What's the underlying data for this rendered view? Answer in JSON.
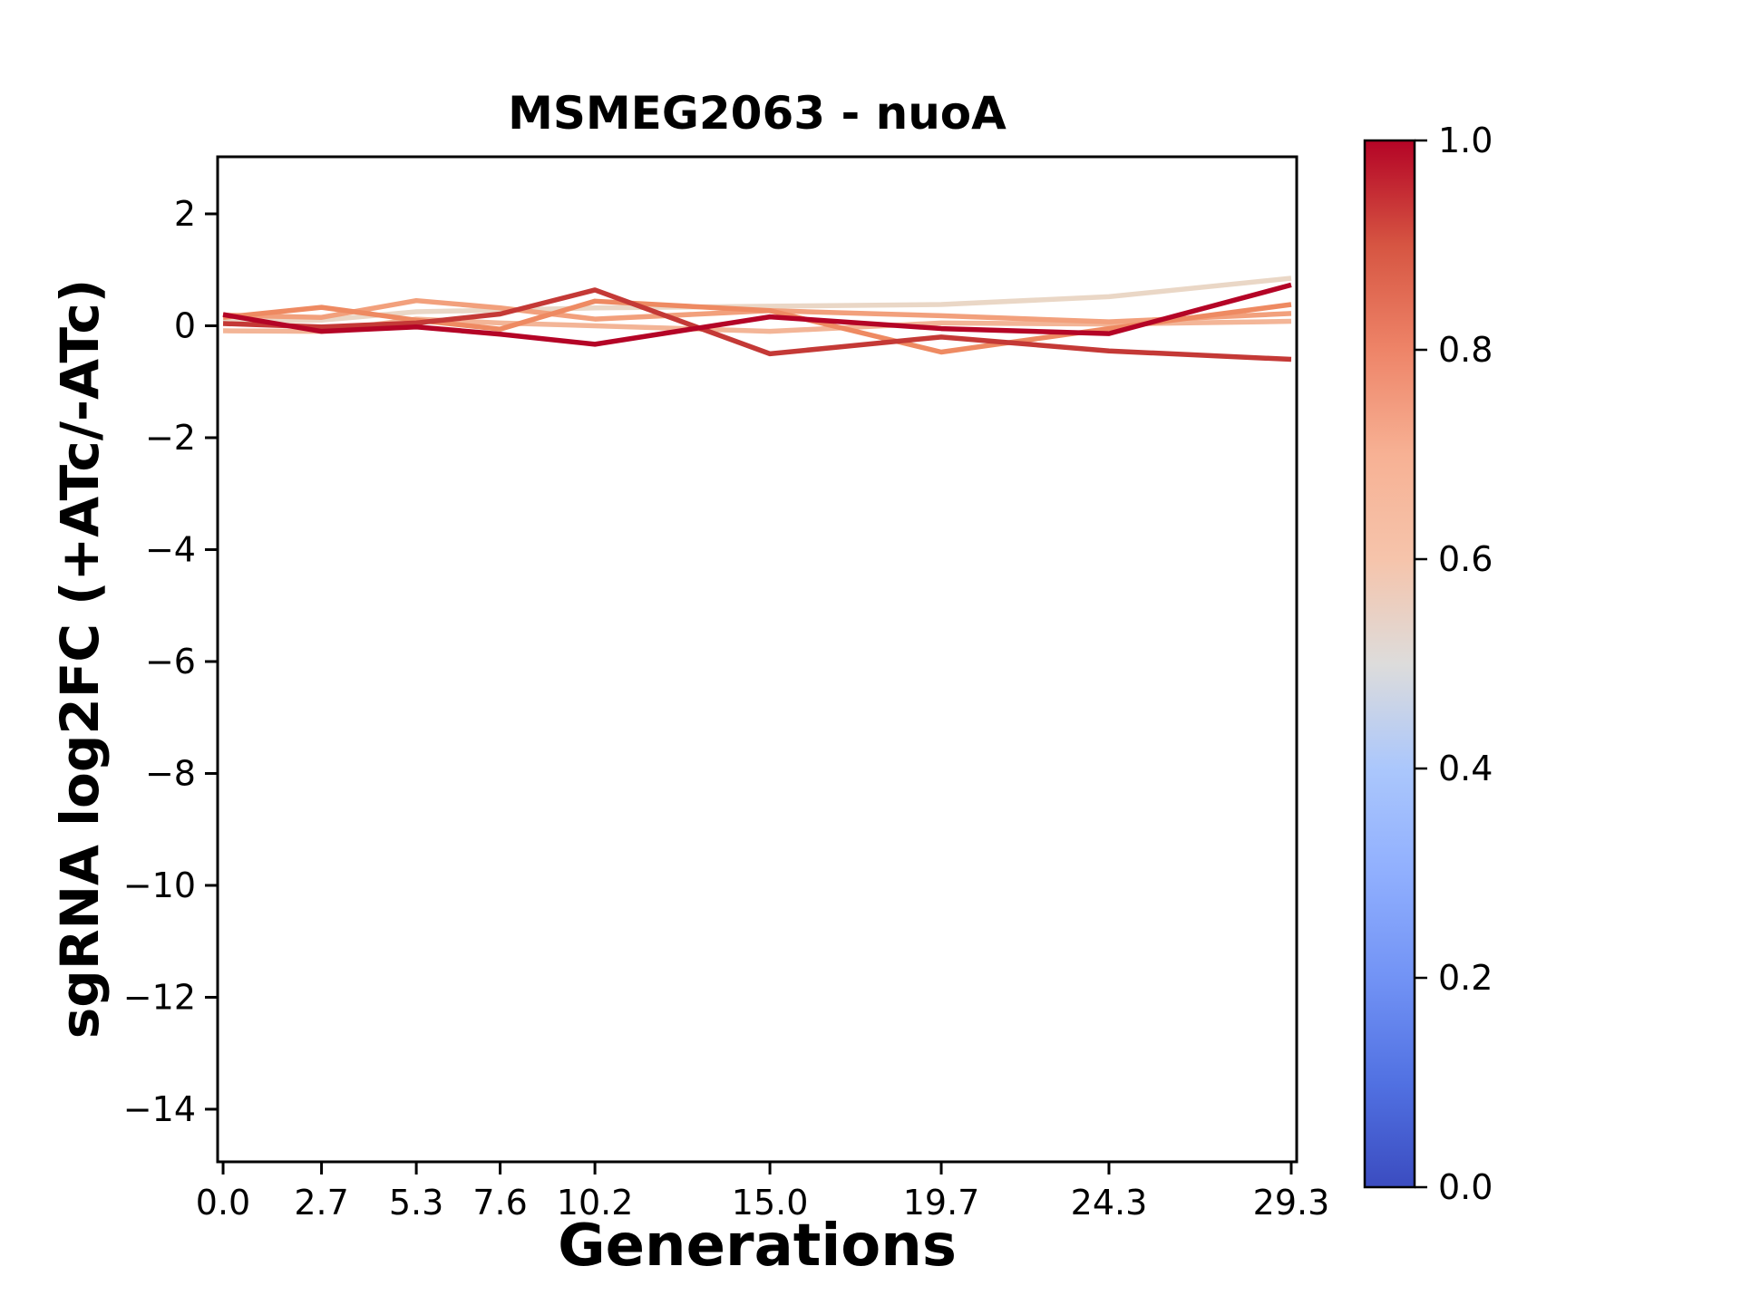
{
  "figure": {
    "background_color": "#ffffff",
    "axis_color": "#000000"
  },
  "chart_data": {
    "type": "line",
    "title": "MSMEG2063 - nuoA",
    "xlabel": "Generations",
    "ylabel": "sgRNA log2FC (+ATc/-ATc)",
    "grid": false,
    "legend": "none (colorbar encodes line color value)",
    "x": [
      0.0,
      2.7,
      5.3,
      7.6,
      10.2,
      15.0,
      19.7,
      24.3,
      29.3
    ],
    "x_tick_labels": [
      "0.0",
      "2.7",
      "5.3",
      "7.6",
      "10.2",
      "15.0",
      "19.7",
      "24.3",
      "29.3"
    ],
    "y_ticks": [
      2,
      0,
      -2,
      -4,
      -6,
      -8,
      -10,
      -12,
      -14
    ],
    "xlim": [
      -0.15,
      29.45
    ],
    "ylim": [
      -14.94,
      3.02
    ],
    "line_width": 5.5,
    "series": [
      {
        "name": "line-1",
        "colormap_value": 0.55,
        "color": "#ead7c6",
        "values": [
          0.08,
          0.1,
          0.25,
          0.28,
          0.32,
          0.35,
          0.38,
          0.52,
          0.85
        ]
      },
      {
        "name": "line-2",
        "colormap_value": 0.6,
        "color": "#f3b597",
        "values": [
          -0.09,
          -0.1,
          0.12,
          0.05,
          0.0,
          -0.1,
          0.05,
          0.03,
          0.08
        ]
      },
      {
        "name": "line-3",
        "colormap_value": 0.65,
        "color": "#f2a07c",
        "values": [
          0.19,
          0.15,
          0.45,
          0.32,
          0.12,
          0.27,
          0.18,
          0.07,
          0.22
        ]
      },
      {
        "name": "line-4",
        "colormap_value": 0.73,
        "color": "#ee8a62",
        "values": [
          0.15,
          0.33,
          0.1,
          -0.06,
          0.44,
          0.27,
          -0.47,
          -0.05,
          0.38
        ]
      },
      {
        "name": "line-5",
        "colormap_value": 0.88,
        "color": "#c43936",
        "values": [
          0.04,
          -0.02,
          0.05,
          0.21,
          0.64,
          -0.5,
          -0.2,
          -0.45,
          -0.6
        ]
      },
      {
        "name": "line-6",
        "colormap_value": 1.0,
        "color": "#b40426",
        "values": [
          0.2,
          -0.1,
          -0.02,
          -0.15,
          -0.33,
          0.16,
          -0.05,
          -0.14,
          0.73
        ]
      }
    ],
    "colorbar": {
      "orientation": "vertical",
      "position": "right",
      "cmap_name": "coolwarm",
      "tick_labels": [
        "0.0",
        "0.2",
        "0.4",
        "0.6",
        "0.8",
        "1.0"
      ],
      "tick_values": [
        0.0,
        0.2,
        0.4,
        0.6,
        0.8,
        1.0
      ],
      "gradient_stops": [
        {
          "t": 0.0,
          "color": "#3b4cc0"
        },
        {
          "t": 0.1,
          "color": "#5171e2"
        },
        {
          "t": 0.2,
          "color": "#7293f5"
        },
        {
          "t": 0.3,
          "color": "#90affe"
        },
        {
          "t": 0.4,
          "color": "#abc7fc"
        },
        {
          "t": 0.5,
          "color": "#dddcdb"
        },
        {
          "t": 0.6,
          "color": "#f6c4ab"
        },
        {
          "t": 0.7,
          "color": "#f7b194"
        },
        {
          "t": 0.8,
          "color": "#ee8468"
        },
        {
          "t": 0.9,
          "color": "#d65542"
        },
        {
          "t": 1.0,
          "color": "#b40426"
        }
      ]
    }
  }
}
